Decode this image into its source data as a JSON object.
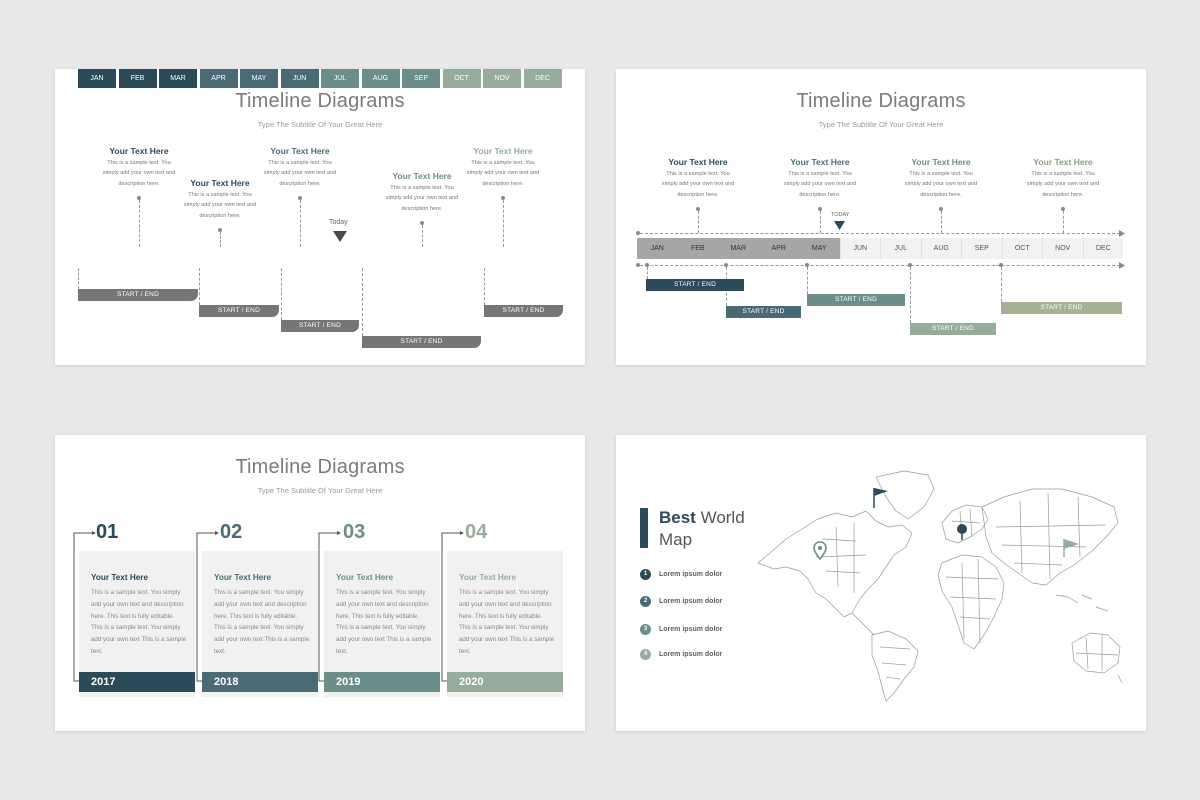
{
  "colors": {
    "c1": "#2b4a5a",
    "c2": "#4a6b76",
    "c3": "#6b8e8a",
    "c4": "#96ad9b",
    "olive": "#8aa07a",
    "grey_bar": "#767676",
    "dark_grey": "#9a9a9a"
  },
  "slide1": {
    "title": "Timeline Diagrams",
    "subtitle": "Type The Subtitle Of Your Great Here",
    "months": [
      "JAN",
      "FEB",
      "MAR",
      "APR",
      "MAY",
      "JUN",
      "JUL",
      "AUG",
      "SEP",
      "OCT",
      "NOV",
      "DEC"
    ],
    "today_label": "Today",
    "items": [
      {
        "heading": "Your Text Here",
        "body": "This is a sample text. You simply add your own text and description here."
      },
      {
        "heading": "Your Text Here",
        "body": "This is a sample text. You simply add your own text and description here."
      },
      {
        "heading": "Your Text Here",
        "body": "This is a sample text. You simply add your own text and description here."
      },
      {
        "heading": "Your Text Here",
        "body": "This is a sample text. You simply add your own text and description here."
      },
      {
        "heading": "Your Text Here",
        "body": "This is a sample text. You simply add your own text and description here."
      }
    ],
    "bars": [
      "START / END",
      "START / END",
      "START / END",
      "START / END",
      "START / END"
    ]
  },
  "slide2": {
    "title": "Timeline Diagrams",
    "subtitle": "Type The Subtitle Of Your Great Here",
    "months": [
      "JAN",
      "FEB",
      "MAR",
      "APR",
      "MAY",
      "JUN",
      "JUL",
      "AUG",
      "SEP",
      "OCT",
      "NOV",
      "DEC"
    ],
    "today_label": "TODAY",
    "items": [
      {
        "heading": "Your Text Here",
        "body": "This is a sample text. You simply add your own text and description here."
      },
      {
        "heading": "Your Text Here",
        "body": "This is a sample text. You simply add your own text and description here."
      },
      {
        "heading": "Your Text Here",
        "body": "This is a sample text. You simply add your own text and description here."
      },
      {
        "heading": "Your Text Here",
        "body": "This is a sample text. You simply add your own text and description here."
      }
    ],
    "bars": [
      "START / END",
      "START / END",
      "START / END",
      "START / END",
      "START / END"
    ]
  },
  "slide3": {
    "title": "Timeline Diagrams",
    "subtitle": "Type The Subtitle Of Your Great Here",
    "cards": [
      {
        "num": "01",
        "heading": "Your Text Here",
        "body": "This is a sample text. You simply add your own text and description here. This text is fully editable. This is a sample text. You simply add your own text This is a sample text.",
        "year": "2017"
      },
      {
        "num": "02",
        "heading": "Your Text Here",
        "body": "This is a sample text. You simply add your own text and description here. This text is fully editable. This is a sample text. You simply add your own text This is a sample text.",
        "year": "2018"
      },
      {
        "num": "03",
        "heading": "Your Text Here",
        "body": "This is a sample text. You simply add your own text and description here. This text is fully editable. This is a sample text. You simply add your own text This is a sample text.",
        "year": "2019"
      },
      {
        "num": "04",
        "heading": "Your Text Here",
        "body": "This is a sample text. You simply add your own text and description here. This text is fully editable. This is a sample text. You simply add your own text This is a sample text.",
        "year": "2020"
      }
    ]
  },
  "slide4": {
    "title_bold": "Best",
    "title_rest": " World",
    "title_line2": "Map",
    "legend": [
      {
        "num": "1",
        "label": "Lorem ipsum dolor"
      },
      {
        "num": "2",
        "label": "Lorem ipsum dolor"
      },
      {
        "num": "3",
        "label": "Lorem ipsum dolor"
      },
      {
        "num": "4",
        "label": "Lorem ipsum dolor"
      }
    ],
    "icons": [
      "location-pin-icon",
      "flag-icon",
      "pushpin-icon",
      "flag-icon"
    ]
  }
}
